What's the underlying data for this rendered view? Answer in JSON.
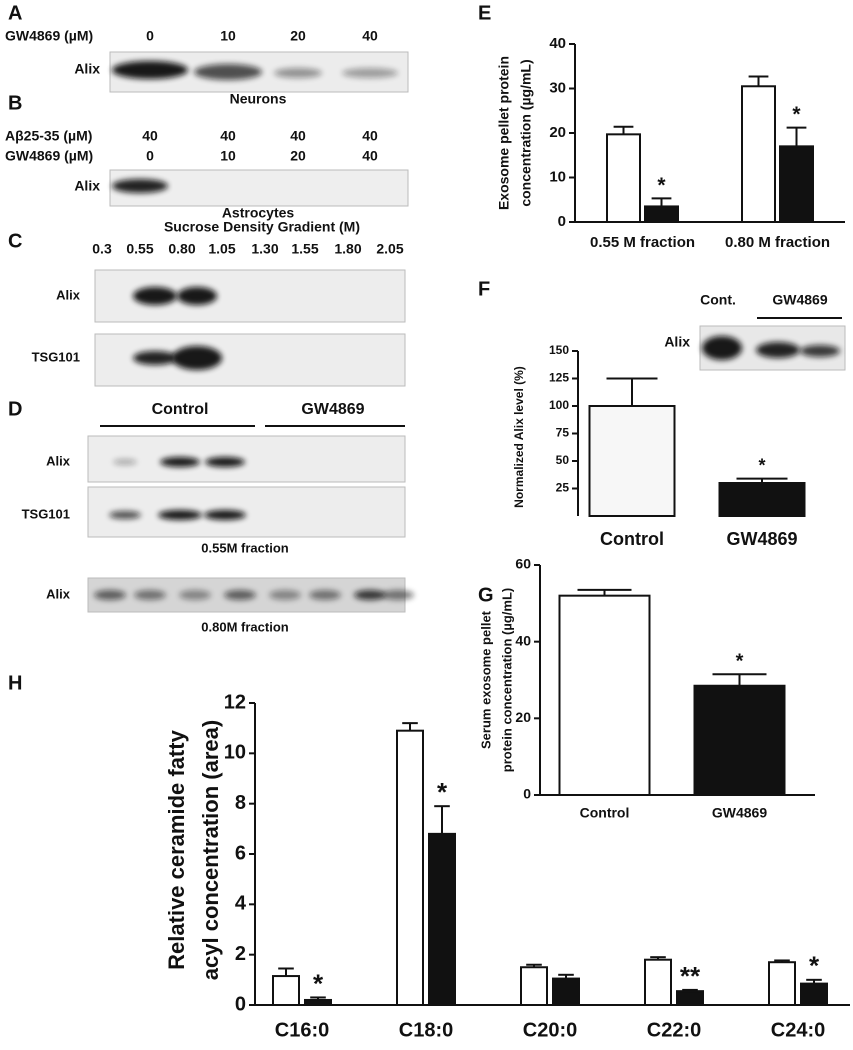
{
  "figure_letters": [
    "A",
    "B",
    "C",
    "D",
    "E",
    "F",
    "G",
    "H"
  ],
  "blots": {
    "A": {
      "row_label": "GW4869 (µM)",
      "lanes": [
        "0",
        "10",
        "20",
        "40"
      ],
      "band_label": "Alix",
      "caption": "Neurons"
    },
    "B": {
      "rows": [
        {
          "label": "Aβ25-35 (µM)",
          "lanes": [
            "40",
            "40",
            "40",
            "40"
          ]
        },
        {
          "label": "GW4869 (µM)",
          "lanes": [
            "0",
            "10",
            "20",
            "40"
          ]
        }
      ],
      "band_label": "Alix",
      "caption": "Astrocytes"
    },
    "C": {
      "title": "Sucrose Density Gradient (M)",
      "lanes": [
        "0.3",
        "0.55",
        "0.80",
        "1.05",
        "1.30",
        "1.55",
        "1.80",
        "2.05"
      ],
      "band_labels": [
        "Alix",
        "TSG101"
      ]
    },
    "D": {
      "groups": [
        "Control",
        "GW4869"
      ],
      "band_labels": [
        "Alix",
        "TSG101"
      ],
      "caption": "0.55M fraction",
      "band_label_2": "Alix",
      "caption_2": "0.80M fraction"
    },
    "F_inset": {
      "lanes": [
        "Cont.",
        "GW4869"
      ],
      "band_label": "Alix"
    }
  },
  "chart_data": [
    {
      "type": "bar",
      "ylabel": [
        "Exosome pellet protein",
        "concentration (µg/mL)"
      ],
      "categories": [
        "0.55 M fraction",
        "0.80 M fraction"
      ],
      "series": [
        {
          "color": "#ffffff",
          "values": [
            19.7,
            30.5
          ],
          "errors": [
            1.7,
            2.2
          ],
          "labels": [
            null,
            null
          ]
        },
        {
          "color": "#111111",
          "values": [
            3.5,
            17
          ],
          "errors": [
            1.8,
            4.2
          ],
          "labels": [
            "*",
            "*"
          ]
        }
      ],
      "ylim": [
        0,
        40
      ],
      "yticks": [
        0,
        10,
        20,
        30,
        40
      ]
    },
    {
      "type": "bar",
      "ylabel": [
        "Normalized Alix level (%)"
      ],
      "categories": [
        "Control",
        "GW4869"
      ],
      "values": [
        100,
        30
      ],
      "errors": [
        25,
        4
      ],
      "labels": [
        null,
        "*"
      ],
      "colors": [
        "#f7f7f7",
        "#111111"
      ],
      "ylim": [
        0,
        150
      ],
      "yticks": [
        25,
        50,
        75,
        100,
        125,
        150
      ]
    },
    {
      "type": "bar",
      "ylabel": [
        "Serum exosome pellet",
        "protein concentration  (µg/mL)"
      ],
      "categories": [
        "Control",
        "GW4869"
      ],
      "values": [
        52,
        28.5
      ],
      "errors": [
        1.5,
        3
      ],
      "labels": [
        null,
        "*"
      ],
      "colors": [
        "#ffffff",
        "#111111"
      ],
      "ylim": [
        0,
        60
      ],
      "yticks": [
        0,
        20,
        40,
        60
      ]
    },
    {
      "type": "bar",
      "ylabel": [
        "Relative ceramide fatty",
        "acyl concentration (area)"
      ],
      "categories": [
        "C16:0",
        "C18:0",
        "C20:0",
        "C22:0",
        "C24:0"
      ],
      "series": [
        {
          "color": "#ffffff",
          "values": [
            1.15,
            10.9,
            1.5,
            1.8,
            1.7
          ],
          "errors": [
            0.3,
            0.3,
            0.1,
            0.1,
            0.07
          ],
          "labels": [
            null,
            null,
            null,
            null,
            null
          ]
        },
        {
          "color": "#111111",
          "values": [
            0.2,
            6.8,
            1.05,
            0.55,
            0.85
          ],
          "errors": [
            0.1,
            1.1,
            0.15,
            0.05,
            0.15
          ],
          "labels": [
            "*",
            "*",
            null,
            "**",
            "*"
          ]
        }
      ],
      "ylim": [
        0,
        12
      ],
      "yticks": [
        0,
        2,
        4,
        6,
        8,
        10,
        12
      ]
    }
  ]
}
